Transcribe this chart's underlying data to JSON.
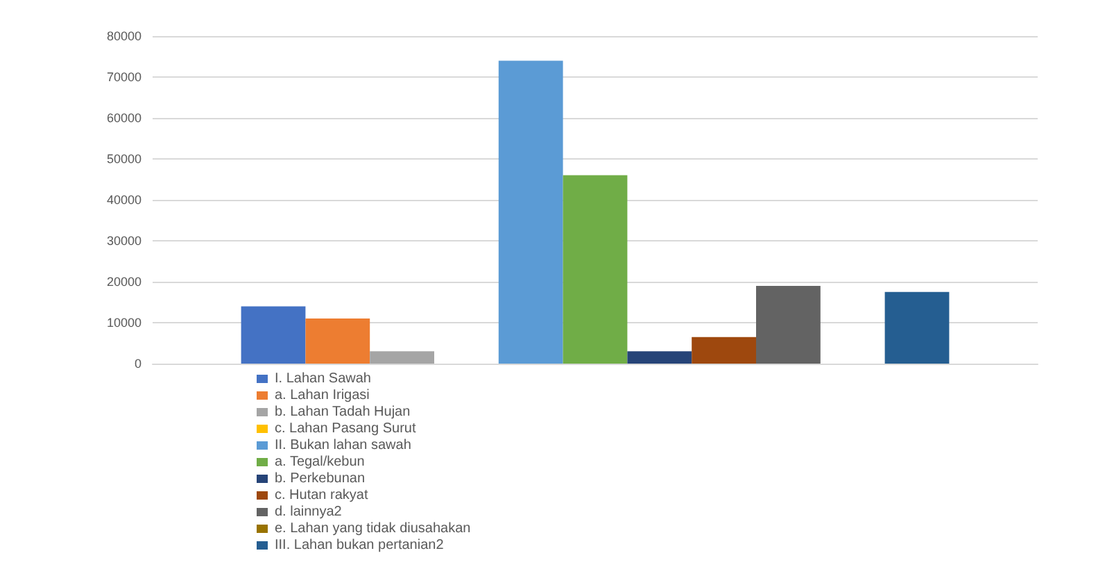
{
  "chart_data": {
    "type": "bar",
    "categories": [
      null
    ],
    "series": [
      {
        "name": "I. Lahan Sawah",
        "color": "#4472c4",
        "values": [
          14000
        ]
      },
      {
        "name": "a. Lahan Irigasi",
        "color": "#ed7d31",
        "values": [
          11000
        ]
      },
      {
        "name": "b. Lahan Tadah Hujan",
        "color": "#a5a5a5",
        "values": [
          3000
        ]
      },
      {
        "name": "c. Lahan Pasang Surut",
        "color": "#ffc000",
        "values": [
          0
        ]
      },
      {
        "name": "II. Bukan lahan sawah",
        "color": "#5b9bd5",
        "values": [
          74000
        ]
      },
      {
        "name": "a. Tegal/kebun",
        "color": "#70ad47",
        "values": [
          46000
        ]
      },
      {
        "name": "b. Perkebunan",
        "color": "#264478",
        "values": [
          3000
        ]
      },
      {
        "name": "c. Hutan rakyat",
        "color": "#9e480e",
        "values": [
          6500
        ]
      },
      {
        "name": "d. lainnya2",
        "color": "#636363",
        "values": [
          19000
        ]
      },
      {
        "name": "e. Lahan yang tidak diusahakan",
        "color": "#997300",
        "values": [
          0
        ]
      },
      {
        "name": "III. Lahan bukan pertanian2",
        "color": "#255e91",
        "values": [
          17500
        ]
      }
    ],
    "ylim": [
      0,
      80000
    ],
    "yticks": [
      0,
      10000,
      20000,
      30000,
      40000,
      50000,
      60000,
      70000,
      80000
    ],
    "grid": "y",
    "legend": "bottom"
  }
}
